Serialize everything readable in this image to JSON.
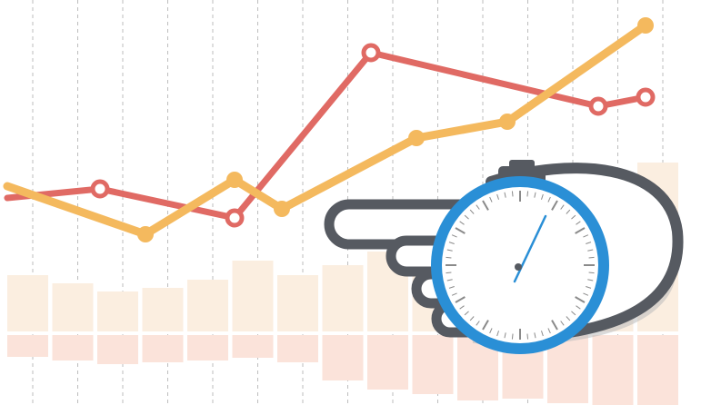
{
  "illustration": {
    "subject": "hand-holding-stopwatch-over-chart",
    "colors": {
      "background": "#ffffff",
      "grid_line": "#bdbdbd",
      "bar_upper": "#fbeee0",
      "bar_lower": "#fbe3da",
      "line_red": "#e06a64",
      "line_orange": "#f4b95e",
      "hand_outline": "#565a61",
      "hand_fill": "#ffffff",
      "shadow": "#bcbcbc",
      "stopwatch_ring": "#2a8fd6",
      "needle": "#2a8fd6"
    },
    "icons": [
      "pointing-hand-icon",
      "stopwatch-icon"
    ]
  }
}
